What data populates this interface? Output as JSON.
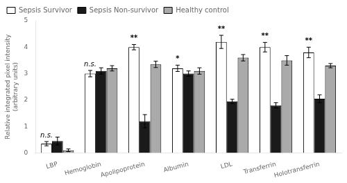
{
  "chart_data": {
    "type": "bar",
    "categories": [
      "LBP",
      "Hemoglobin",
      "Apolipoprotein",
      "Albumin",
      "LDL",
      "Transferrin",
      "Holotransferrin"
    ],
    "series": [
      {
        "name": "Sepsis Survivor",
        "color": "#ffffff",
        "values": [
          0.35,
          3.0,
          4.0,
          3.2,
          4.2,
          4.0,
          3.8
        ],
        "errors": [
          0.08,
          0.12,
          0.1,
          0.12,
          0.25,
          0.18,
          0.2
        ]
      },
      {
        "name": "Sepsis Non-survivor",
        "color": "#1a1a1a",
        "values": [
          0.45,
          3.1,
          1.2,
          3.0,
          1.95,
          1.8,
          2.05
        ],
        "errors": [
          0.15,
          0.12,
          0.25,
          0.1,
          0.08,
          0.1,
          0.15
        ]
      },
      {
        "name": "Healthy control",
        "color": "#aaaaaa",
        "values": [
          0.1,
          3.2,
          3.35,
          3.1,
          3.6,
          3.5,
          3.3
        ],
        "errors": [
          0.05,
          0.1,
          0.12,
          0.12,
          0.12,
          0.18,
          0.08
        ]
      }
    ],
    "annotations": [
      "n.s.",
      "n.s.",
      "**",
      "*",
      "**",
      "**",
      "**"
    ],
    "ylabel": "Relative integrated pixel intensity\n(arbitrary units)",
    "ylim": [
      0,
      5
    ],
    "yticks": [
      0,
      1,
      2,
      3,
      4,
      5
    ],
    "legend": "upper left",
    "grid": false
  }
}
